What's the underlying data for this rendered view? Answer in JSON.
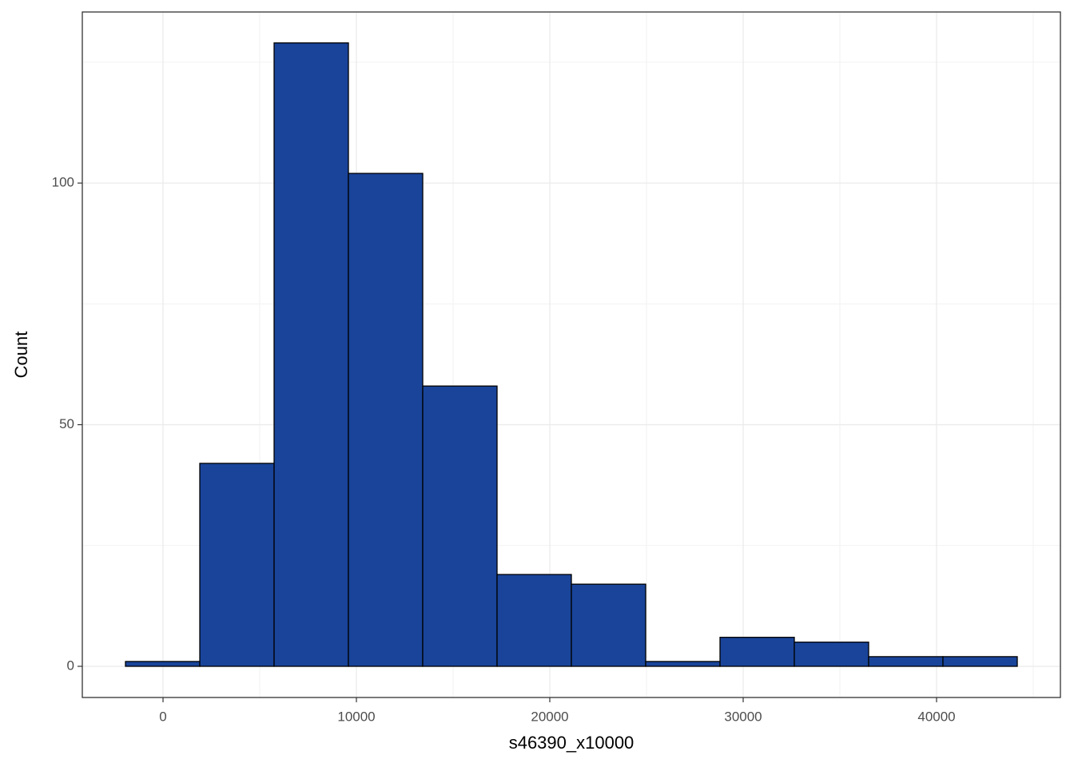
{
  "chart_data": {
    "type": "histogram",
    "x_label": "s46390_x10000",
    "y_label": "Count",
    "bins": [
      -1942,
      1901,
      5744,
      9587,
      13430,
      17273,
      21116,
      24959,
      28802,
      32645,
      36488,
      40331,
      44174
    ],
    "values": [
      1,
      42,
      129,
      102,
      58,
      19,
      17,
      1,
      6,
      5,
      2,
      2
    ],
    "color": "#19449a",
    "edge_color": "#000000",
    "xlim": [
      -4174,
      46405
    ],
    "ylim": [
      -6.45,
      135.4
    ],
    "xticks": [
      0,
      10000,
      20000,
      30000,
      40000
    ],
    "yticks": [
      0,
      50,
      100
    ],
    "x_minor_gridlines": [
      5000,
      15000,
      25000,
      35000,
      45000
    ],
    "y_minor_gridlines": [
      25,
      75,
      125
    ],
    "grid": true
  }
}
